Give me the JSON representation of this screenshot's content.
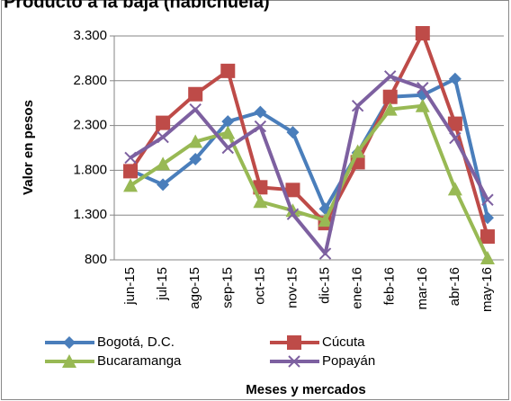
{
  "chart_data": {
    "type": "line",
    "title": "Producto a la baja (habichuela)",
    "y_label": "Valor en pesos",
    "x_label": "Meses  y mercados",
    "categories": [
      "jun-15",
      "jul-15",
      "ago-15",
      "sep-15",
      "oct-15",
      "nov-15",
      "dic-15",
      "ene-16",
      "feb-16",
      "mar-16",
      "abr-16",
      "may-16"
    ],
    "ylim": [
      800,
      3300
    ],
    "yticks": [
      800,
      {
        "value": 1300,
        "label": "1.300"
      },
      {
        "value": 1800,
        "label": "1.800"
      },
      {
        "value": 2300,
        "label": "2.300"
      },
      {
        "value": 2800,
        "label": "2.800"
      },
      {
        "value": 3300,
        "label": "3.300"
      }
    ],
    "grid": true,
    "series": [
      {
        "name": "Bogotá, D.C.",
        "color": "#4a7ebb",
        "marker": "diamond",
        "values": [
          1800,
          1640,
          1925,
          2345,
          2450,
          2225,
          1370,
          1995,
          2620,
          2640,
          2820,
          1270
        ]
      },
      {
        "name": "Cúcuta",
        "color": "#be4b48",
        "marker": "square",
        "values": [
          1790,
          2330,
          2650,
          2910,
          1610,
          1580,
          1210,
          1890,
          2620,
          3330,
          2320,
          1060
        ]
      },
      {
        "name": "Bucaramanga",
        "color": "#98b954",
        "marker": "triangle",
        "values": [
          1630,
          1870,
          2120,
          2220,
          1450,
          1350,
          1240,
          2010,
          2480,
          2520,
          1590,
          820
        ]
      },
      {
        "name": "Popayán",
        "color": "#7d60a0",
        "marker": "x",
        "values": [
          1940,
          2170,
          2480,
          2050,
          2290,
          1310,
          870,
          2520,
          2850,
          2720,
          2160,
          1470
        ]
      }
    ]
  }
}
